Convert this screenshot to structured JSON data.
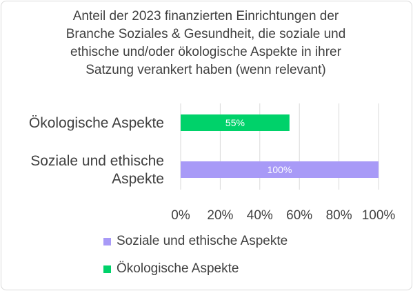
{
  "chart_data": {
    "type": "bar",
    "orientation": "horizontal",
    "title_lines": [
      "Anteil der 2023 finanzierten Einrichtungen der",
      "Branche Soziales & Gesundheit, die soziale und",
      "ethische und/oder ökologische Aspekte in ihrer",
      "Satzung verankert haben (wenn relevant)"
    ],
    "categories": [
      [
        "Ökologische Aspekte"
      ],
      [
        "Soziale und ethische",
        "Aspekte"
      ]
    ],
    "series": [
      {
        "name": "Ökologische Aspekte",
        "color": "#00d26a",
        "values": [
          55,
          null
        ],
        "labels": [
          "55%",
          ""
        ]
      },
      {
        "name": "Soziale und ethische Aspekte",
        "color": "#a89af7",
        "values": [
          null,
          100
        ],
        "labels": [
          "",
          "100%"
        ]
      }
    ],
    "xlim": [
      0,
      100
    ],
    "x_ticks": [
      0,
      20,
      40,
      60,
      80,
      100
    ],
    "x_tick_labels": [
      "0%",
      "20%",
      "40%",
      "60%",
      "80%",
      "100%"
    ],
    "grid": true,
    "legend_position": "bottom",
    "legend": [
      {
        "label": "Soziale und ethische Aspekte",
        "color": "#a89af7"
      },
      {
        "label": "Ökologische Aspekte",
        "color": "#00d26a"
      }
    ]
  }
}
